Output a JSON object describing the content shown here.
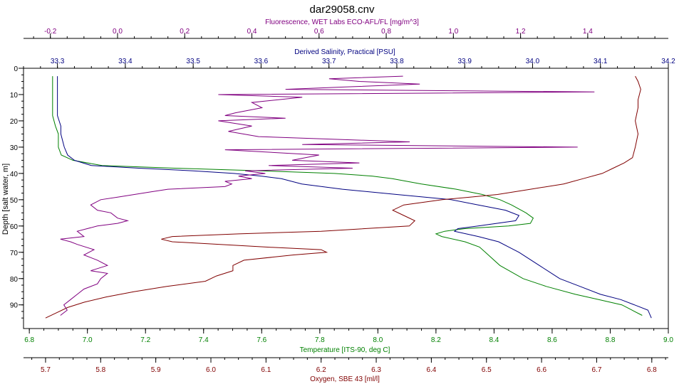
{
  "chart_data": {
    "type": "line",
    "title": "dar29058.cnv",
    "y_axis": {
      "label": "Depth [salt water, m]",
      "range": [
        0,
        99
      ],
      "inverted": true,
      "ticks": [
        0,
        10,
        20,
        30,
        40,
        50,
        60,
        70,
        80,
        90
      ],
      "tick_labels": [
        "0",
        "10",
        "20",
        "30",
        "40",
        "50",
        "60",
        "70",
        "80",
        "90"
      ]
    },
    "x_axes": [
      {
        "key": "fluorescence",
        "label": "Fluorescence, WET Labs ECO-AFL/FL [mg/m^3]",
        "position": "top",
        "range": [
          -0.28,
          1.64
        ],
        "ticks": [
          -0.2,
          0.0,
          0.2,
          0.4,
          0.6,
          0.8,
          1.0,
          1.2,
          1.4
        ],
        "tick_labels": [
          "-0.2",
          "0.0",
          "0.2",
          "0.4",
          "0.6",
          "0.8",
          "1.0",
          "1.2",
          "1.4"
        ],
        "color": "#800080"
      },
      {
        "key": "salinity",
        "label": "Derived Salinity, Practical [PSU]",
        "position": "top",
        "range": [
          33.25,
          34.2
        ],
        "ticks": [
          33.3,
          33.4,
          33.5,
          33.6,
          33.7,
          33.8,
          33.9,
          34.0,
          34.1,
          34.2
        ],
        "tick_labels": [
          "33.3",
          "33.4",
          "33.5",
          "33.6",
          "33.7",
          "33.8",
          "33.9",
          "34.0",
          "34.1",
          "34.2"
        ],
        "color": "#000080"
      },
      {
        "key": "temperature",
        "label": "Temperature [ITS-90, deg C]",
        "position": "bottom",
        "range": [
          6.78,
          9.0
        ],
        "ticks": [
          6.8,
          7.0,
          7.2,
          7.4,
          7.6,
          7.8,
          8.0,
          8.2,
          8.4,
          8.6,
          8.8,
          9.0
        ],
        "tick_labels": [
          "6.8",
          "7.0",
          "7.2",
          "7.4",
          "7.6",
          "7.8",
          "8.0",
          "8.2",
          "8.4",
          "8.6",
          "8.8",
          "9.0"
        ],
        "color": "#008000"
      },
      {
        "key": "oxygen",
        "label": "Oxygen, SBE 43 [ml/l]",
        "position": "bottom",
        "range": [
          5.66,
          6.83
        ],
        "ticks": [
          5.7,
          5.8,
          5.9,
          6.0,
          6.1,
          6.2,
          6.3,
          6.4,
          6.5,
          6.6,
          6.7,
          6.8
        ],
        "tick_labels": [
          "5.7",
          "5.8",
          "5.9",
          "6.0",
          "6.1",
          "6.2",
          "6.3",
          "6.4",
          "6.5",
          "6.6",
          "6.7",
          "6.8"
        ],
        "color": "#800000"
      }
    ],
    "series": [
      {
        "key": "temperature",
        "color": "#008000",
        "points": [
          [
            3,
            6.88
          ],
          [
            18,
            6.88
          ],
          [
            22,
            6.89
          ],
          [
            25,
            6.9
          ],
          [
            30,
            6.9
          ],
          [
            33,
            6.91
          ],
          [
            35,
            6.95
          ],
          [
            37,
            7.05
          ],
          [
            38,
            7.3
          ],
          [
            39,
            7.6
          ],
          [
            40,
            7.85
          ],
          [
            41,
            7.98
          ],
          [
            42,
            8.05
          ],
          [
            44,
            8.15
          ],
          [
            46,
            8.27
          ],
          [
            48,
            8.36
          ],
          [
            50,
            8.42
          ],
          [
            52,
            8.46
          ],
          [
            55,
            8.51
          ],
          [
            57,
            8.535
          ],
          [
            59,
            8.525
          ],
          [
            60,
            8.45
          ],
          [
            61,
            8.3
          ],
          [
            62,
            8.23
          ],
          [
            63,
            8.2
          ],
          [
            64,
            8.22
          ],
          [
            66,
            8.3
          ],
          [
            68,
            8.35
          ],
          [
            70,
            8.37
          ],
          [
            75,
            8.42
          ],
          [
            80,
            8.5
          ],
          [
            83,
            8.58
          ],
          [
            86,
            8.68
          ],
          [
            88,
            8.76
          ],
          [
            90,
            8.84
          ],
          [
            92,
            8.875
          ],
          [
            94,
            8.91
          ]
        ]
      },
      {
        "key": "salinity",
        "color": "#000080",
        "points": [
          [
            3,
            33.3
          ],
          [
            18,
            33.3
          ],
          [
            22,
            33.305
          ],
          [
            25,
            33.305
          ],
          [
            30,
            33.31
          ],
          [
            33,
            33.315
          ],
          [
            35,
            33.325
          ],
          [
            37,
            33.35
          ],
          [
            38,
            33.42
          ],
          [
            39,
            33.5
          ],
          [
            40,
            33.56
          ],
          [
            41,
            33.6
          ],
          [
            42,
            33.63
          ],
          [
            44,
            33.66
          ],
          [
            46,
            33.72
          ],
          [
            48,
            33.8
          ],
          [
            50,
            33.88
          ],
          [
            52,
            33.92
          ],
          [
            54,
            33.96
          ],
          [
            56,
            33.98
          ],
          [
            58,
            33.975
          ],
          [
            60,
            33.92
          ],
          [
            61,
            33.89
          ],
          [
            62,
            33.885
          ],
          [
            64,
            33.92
          ],
          [
            66,
            33.95
          ],
          [
            68,
            33.965
          ],
          [
            70,
            33.98
          ],
          [
            75,
            34.01
          ],
          [
            80,
            34.04
          ],
          [
            83,
            34.07
          ],
          [
            86,
            34.1
          ],
          [
            88,
            34.13
          ],
          [
            90,
            34.15
          ],
          [
            92,
            34.17
          ],
          [
            95,
            34.175
          ]
        ]
      },
      {
        "key": "oxygen",
        "color": "#800000",
        "points": [
          [
            3,
            6.77
          ],
          [
            5,
            6.775
          ],
          [
            8,
            6.78
          ],
          [
            12,
            6.775
          ],
          [
            15,
            6.775
          ],
          [
            20,
            6.77
          ],
          [
            25,
            6.775
          ],
          [
            30,
            6.77
          ],
          [
            34,
            6.765
          ],
          [
            36,
            6.75
          ],
          [
            38,
            6.73
          ],
          [
            40,
            6.71
          ],
          [
            42,
            6.675
          ],
          [
            44,
            6.64
          ],
          [
            46,
            6.58
          ],
          [
            48,
            6.52
          ],
          [
            49,
            6.47
          ],
          [
            50,
            6.42
          ],
          [
            52,
            6.35
          ],
          [
            54,
            6.33
          ],
          [
            56,
            6.35
          ],
          [
            58,
            6.37
          ],
          [
            60,
            6.36
          ],
          [
            62,
            6.2
          ],
          [
            63,
            6.05
          ],
          [
            64,
            5.93
          ],
          [
            65,
            5.91
          ],
          [
            66,
            5.93
          ],
          [
            68,
            6.1
          ],
          [
            69,
            6.2
          ],
          [
            70,
            6.21
          ],
          [
            71,
            6.15
          ],
          [
            73,
            6.06
          ],
          [
            75,
            6.04
          ],
          [
            77,
            6.04
          ],
          [
            79,
            6.01
          ],
          [
            81,
            5.99
          ],
          [
            83,
            5.92
          ],
          [
            85,
            5.86
          ],
          [
            87,
            5.81
          ],
          [
            89,
            5.77
          ],
          [
            91,
            5.74
          ],
          [
            93,
            5.72
          ],
          [
            95,
            5.7
          ]
        ]
      },
      {
        "key": "fluorescence",
        "color": "#800080",
        "points": [
          [
            3,
            0.85
          ],
          [
            4,
            0.63
          ],
          [
            5,
            0.72
          ],
          [
            6,
            0.9
          ],
          [
            7,
            0.7
          ],
          [
            8,
            0.5
          ],
          [
            9,
            1.42
          ],
          [
            10,
            0.3
          ],
          [
            11,
            0.55
          ],
          [
            13,
            0.4
          ],
          [
            15,
            0.43
          ],
          [
            17,
            0.35
          ],
          [
            18,
            0.32
          ],
          [
            19,
            0.5
          ],
          [
            20,
            0.3
          ],
          [
            22,
            0.4
          ],
          [
            24,
            0.33
          ],
          [
            26,
            0.42
          ],
          [
            28,
            0.87
          ],
          [
            29,
            0.55
          ],
          [
            30,
            1.37
          ],
          [
            31,
            0.32
          ],
          [
            33,
            0.6
          ],
          [
            35,
            0.52
          ],
          [
            36,
            0.72
          ],
          [
            37,
            0.45
          ],
          [
            38,
            0.7
          ],
          [
            39,
            0.38
          ],
          [
            40,
            0.44
          ],
          [
            41,
            0.36
          ],
          [
            42,
            0.4
          ],
          [
            43,
            0.32
          ],
          [
            44,
            0.34
          ],
          [
            45,
            0.32
          ],
          [
            46,
            0.15
          ],
          [
            47,
            0.1
          ],
          [
            49,
            0.0
          ],
          [
            50,
            -0.05
          ],
          [
            52,
            -0.08
          ],
          [
            54,
            -0.06
          ],
          [
            55,
            -0.02
          ],
          [
            57,
            0.0
          ],
          [
            58,
            0.03
          ],
          [
            59,
            0.0
          ],
          [
            60,
            -0.06
          ],
          [
            62,
            -0.12
          ],
          [
            64,
            -0.1
          ],
          [
            65,
            -0.17
          ],
          [
            66,
            -0.14
          ],
          [
            67,
            -0.12
          ],
          [
            69,
            -0.07
          ],
          [
            71,
            -0.1
          ],
          [
            73,
            -0.06
          ],
          [
            75,
            -0.03
          ],
          [
            77,
            -0.08
          ],
          [
            78,
            -0.03
          ],
          [
            80,
            -0.05
          ],
          [
            82,
            -0.06
          ],
          [
            84,
            -0.1
          ],
          [
            86,
            -0.12
          ],
          [
            88,
            -0.14
          ],
          [
            90,
            -0.16
          ],
          [
            92,
            -0.15
          ],
          [
            94,
            -0.17
          ]
        ]
      }
    ]
  }
}
